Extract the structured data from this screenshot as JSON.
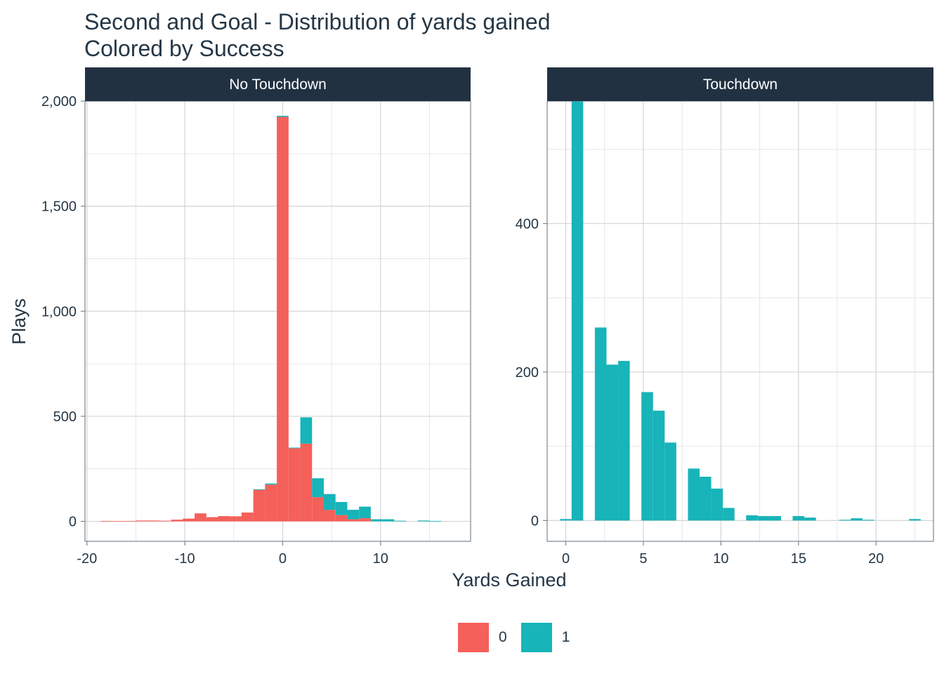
{
  "chart_data": {
    "type": "bar",
    "title": "Second and Goal - Distribution of yards gained",
    "subtitle": "Colored by Success",
    "xlabel": "Yards Gained",
    "ylabel": "Plays",
    "grid": true,
    "legend_placement": "bottom",
    "colors": {
      "0": "#F5605A",
      "1": "#17B4B9",
      "strip": "#223142",
      "text": "#253746"
    },
    "legend": [
      {
        "label": "0",
        "color": "#F5605A"
      },
      {
        "label": "1",
        "color": "#17B4B9"
      }
    ],
    "panels": [
      {
        "name": "No Touchdown",
        "xlim": [
          -20.2,
          19.2
        ],
        "ylim": [
          -95,
          2000
        ],
        "x_ticks": [
          -20,
          -10,
          0,
          10
        ],
        "x_tick_labels": [
          "-20",
          "-10",
          "0",
          "10"
        ],
        "y_ticks": [
          0,
          500,
          1000,
          1500,
          2000
        ],
        "y_tick_labels": [
          "0",
          "500",
          "1,000",
          "1,500",
          "2,000"
        ],
        "bin_width": 1.2,
        "series": [
          {
            "name": "0",
            "color": "#F5605A",
            "bins": [
              {
                "x": -18.0,
                "value": 2
              },
              {
                "x": -16.8,
                "value": 1
              },
              {
                "x": -15.6,
                "value": 1
              },
              {
                "x": -14.4,
                "value": 4
              },
              {
                "x": -13.2,
                "value": 4
              },
              {
                "x": -12.0,
                "value": 3
              },
              {
                "x": -10.8,
                "value": 8
              },
              {
                "x": -9.6,
                "value": 13
              },
              {
                "x": -8.4,
                "value": 38
              },
              {
                "x": -7.2,
                "value": 20
              },
              {
                "x": -6.0,
                "value": 25
              },
              {
                "x": -4.8,
                "value": 24
              },
              {
                "x": -3.6,
                "value": 42
              },
              {
                "x": -2.4,
                "value": 150
              },
              {
                "x": -1.2,
                "value": 175
              },
              {
                "x": 0.0,
                "value": 1925
              },
              {
                "x": 1.2,
                "value": 348
              },
              {
                "x": 2.4,
                "value": 370
              },
              {
                "x": 3.6,
                "value": 115
              },
              {
                "x": 4.8,
                "value": 55
              },
              {
                "x": 6.0,
                "value": 30
              },
              {
                "x": 7.2,
                "value": 10
              },
              {
                "x": 8.4,
                "value": 15
              }
            ]
          },
          {
            "name": "1",
            "color": "#17B4B9",
            "bins": [
              {
                "x": -2.4,
                "value": 3
              },
              {
                "x": -1.2,
                "value": 5
              },
              {
                "x": 0.0,
                "value": 5
              },
              {
                "x": 1.2,
                "value": 3
              },
              {
                "x": 2.4,
                "value": 125
              },
              {
                "x": 3.6,
                "value": 90
              },
              {
                "x": 4.8,
                "value": 75
              },
              {
                "x": 6.0,
                "value": 62
              },
              {
                "x": 7.2,
                "value": 45
              },
              {
                "x": 8.4,
                "value": 55
              },
              {
                "x": 9.6,
                "value": 10
              },
              {
                "x": 10.8,
                "value": 10
              },
              {
                "x": 12.0,
                "value": 3
              },
              {
                "x": 14.4,
                "value": 4
              },
              {
                "x": 15.6,
                "value": 2
              }
            ]
          }
        ]
      },
      {
        "name": "Touchdown",
        "xlim": [
          -1.2,
          23.7
        ],
        "ylim": [
          -28,
          565
        ],
        "x_ticks": [
          0,
          5,
          10,
          15,
          20
        ],
        "x_tick_labels": [
          "0",
          "5",
          "10",
          "15",
          "20"
        ],
        "y_ticks": [
          0,
          200,
          400
        ],
        "y_tick_labels": [
          "0",
          "200",
          "400"
        ],
        "bin_width": 0.75,
        "series": [
          {
            "name": "1",
            "color": "#17B4B9",
            "bins": [
              {
                "x": 0.0,
                "value": 2
              },
              {
                "x": 0.75,
                "value": 566
              },
              {
                "x": 2.25,
                "value": 260
              },
              {
                "x": 3.0,
                "value": 210
              },
              {
                "x": 3.75,
                "value": 215
              },
              {
                "x": 5.25,
                "value": 173
              },
              {
                "x": 6.0,
                "value": 148
              },
              {
                "x": 6.75,
                "value": 105
              },
              {
                "x": 8.25,
                "value": 70
              },
              {
                "x": 9.0,
                "value": 59
              },
              {
                "x": 9.75,
                "value": 43
              },
              {
                "x": 10.5,
                "value": 17
              },
              {
                "x": 12.0,
                "value": 7
              },
              {
                "x": 12.75,
                "value": 6
              },
              {
                "x": 13.5,
                "value": 6
              },
              {
                "x": 15.0,
                "value": 6
              },
              {
                "x": 15.75,
                "value": 4
              },
              {
                "x": 18.0,
                "value": 1
              },
              {
                "x": 18.75,
                "value": 3
              },
              {
                "x": 19.5,
                "value": 1
              },
              {
                "x": 22.5,
                "value": 2
              }
            ]
          }
        ]
      }
    ]
  }
}
